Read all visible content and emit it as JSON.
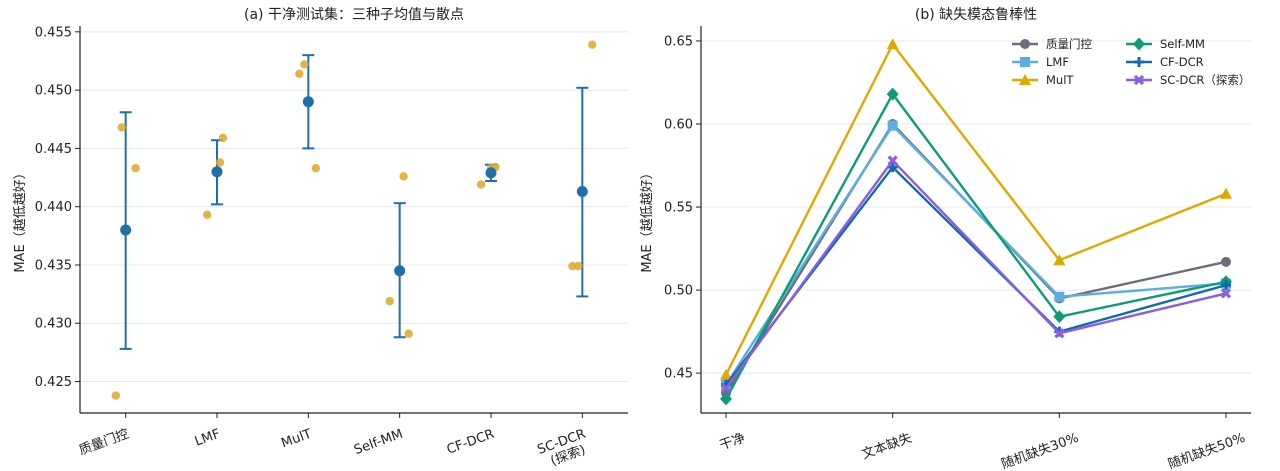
{
  "colors": {
    "errorbar": "#1f6fa8",
    "seed": "#e0a82e",
    "grid": "#e8e8e8",
    "axis": "#222222"
  },
  "chart_data": [
    {
      "type": "scatter",
      "title": "(a) 干净测试集：三种子均值与散点",
      "ylabel": "MAE（越低越好）",
      "xlabel": "",
      "ylim": [
        0.4223,
        0.4555
      ],
      "yticks": [
        "0.425",
        "0.430",
        "0.435",
        "0.440",
        "0.445",
        "0.450",
        "0.455"
      ],
      "grid": "horizontal",
      "categories": [
        "质量门控",
        "LMF",
        "MulT",
        "Self-MM",
        "CF-DCR",
        "SC-DCR\n(探索)"
      ],
      "mean": [
        0.438,
        0.443,
        0.449,
        0.4345,
        0.4429,
        0.4413
      ],
      "err_low": [
        0.4278,
        0.4402,
        0.445,
        0.4288,
        0.4422,
        0.4323
      ],
      "err_high": [
        0.4481,
        0.4457,
        0.453,
        0.4403,
        0.4436,
        0.4502
      ],
      "seeds": [
        [
          0.4238,
          0.4468,
          0.4433
        ],
        [
          0.4393,
          0.4438,
          0.4459
        ],
        [
          0.4514,
          0.4522,
          0.4433
        ],
        [
          0.4319,
          0.4426,
          0.4291
        ],
        [
          0.4419,
          0.4433,
          0.4434
        ],
        [
          0.4349,
          0.4349,
          0.4539
        ]
      ]
    },
    {
      "type": "line",
      "title": "(b) 缺失模态鲁棒性",
      "ylabel": "MAE（越低越好）",
      "xlabel": "",
      "ylim": [
        0.426,
        0.659
      ],
      "yticks": [
        "0.45",
        "0.50",
        "0.55",
        "0.60",
        "0.65"
      ],
      "grid": "horizontal",
      "legend": "top-right",
      "categories": [
        "干净",
        "文本缺失",
        "随机缺失30%",
        "随机缺失50%"
      ],
      "series": [
        {
          "name": "质量门控",
          "color": "#6b6e7a",
          "marker": "circle",
          "values": [
            0.438,
            0.6,
            0.495,
            0.517
          ]
        },
        {
          "name": "LMF",
          "color": "#5aaee0",
          "marker": "square",
          "values": [
            0.443,
            0.599,
            0.496,
            0.504
          ]
        },
        {
          "name": "MulT",
          "color": "#e0a800",
          "marker": "triangle",
          "values": [
            0.449,
            0.648,
            0.518,
            0.558
          ]
        },
        {
          "name": "Self-MM",
          "color": "#0e9c78",
          "marker": "diamond",
          "values": [
            0.4345,
            0.618,
            0.484,
            0.505
          ]
        },
        {
          "name": "CF-DCR",
          "color": "#0f6bab",
          "marker": "plus",
          "values": [
            0.443,
            0.574,
            0.475,
            0.503
          ]
        },
        {
          "name": "SC-DCR（探索）",
          "color": "#8a5ee0",
          "marker": "x",
          "values": [
            0.441,
            0.578,
            0.474,
            0.498
          ]
        }
      ]
    }
  ]
}
